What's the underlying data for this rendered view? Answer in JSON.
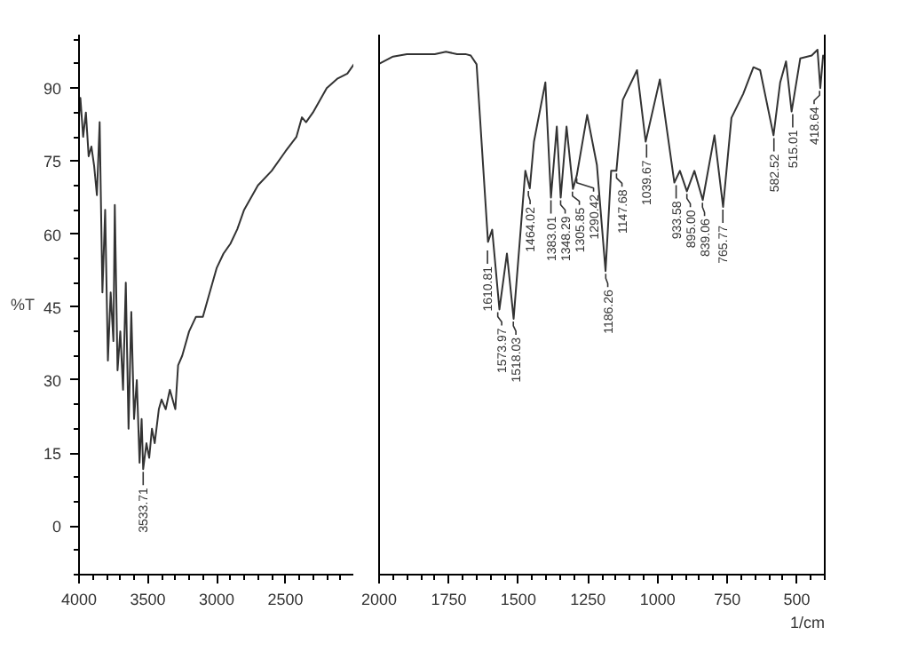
{
  "chart_data": [
    {
      "type": "line",
      "ylabel": "%T",
      "x": [
        4000,
        3990,
        3970,
        3950,
        3930,
        3910,
        3890,
        3870,
        3850,
        3830,
        3810,
        3790,
        3770,
        3750,
        3740,
        3720,
        3700,
        3680,
        3660,
        3640,
        3620,
        3600,
        3580,
        3560,
        3545,
        3533.71,
        3510,
        3490,
        3470,
        3450,
        3420,
        3400,
        3370,
        3340,
        3300,
        3280,
        3250,
        3200,
        3150,
        3100,
        3050,
        3000,
        2950,
        2900,
        2850,
        2800,
        2700,
        2600,
        2500,
        2420,
        2380,
        2350,
        2300,
        2200,
        2120,
        2050,
        2000
      ],
      "values": [
        84,
        88,
        80,
        85,
        76,
        78,
        74,
        68,
        83,
        48,
        65,
        34,
        48,
        38,
        66,
        32,
        40,
        28,
        50,
        20,
        44,
        22,
        30,
        13,
        22,
        11.7,
        17,
        14,
        20,
        17,
        24,
        26,
        24,
        28,
        24,
        33,
        35,
        40,
        43,
        43,
        48,
        53,
        56,
        58,
        61,
        65,
        70,
        73,
        77,
        80,
        84,
        83,
        85,
        90,
        92,
        93,
        95
      ],
      "color": "#333333",
      "line_style": "solid",
      "xlim": [
        4000,
        2000
      ],
      "xticks": [
        4000,
        3500,
        3000,
        2500
      ],
      "ylim": [
        -10,
        101
      ],
      "yticks": [
        0,
        15,
        30,
        45,
        60,
        75,
        90
      ],
      "annotations": [
        {
          "text": "3533.71",
          "x": 3533.71,
          "y": 11.7
        }
      ]
    },
    {
      "type": "line",
      "xlabel": "1/cm",
      "tick_labels": "x",
      "x": [
        2000,
        1950,
        1900,
        1850,
        1800,
        1760,
        1720,
        1690,
        1671,
        1650,
        1609,
        1594,
        1568,
        1541,
        1517,
        1475,
        1459,
        1444,
        1403,
        1383,
        1362,
        1348,
        1327,
        1304,
        1290.42,
        1253,
        1218,
        1187,
        1167,
        1148,
        1125,
        1074,
        1043,
        992,
        940,
        920,
        895,
        868,
        838,
        796,
        765,
        735,
        693,
        656,
        632,
        584,
        560,
        539,
        519,
        488,
        447,
        426,
        416,
        406,
        400
      ],
      "values": [
        95,
        96.5,
        97,
        97,
        97,
        97.5,
        97,
        97,
        96.7,
        94.9,
        58.4,
        60.9,
        44.5,
        56,
        42.6,
        73,
        69.4,
        79,
        91.2,
        67.5,
        82.1,
        67.5,
        82.1,
        69.3,
        72,
        84.5,
        74.2,
        52.4,
        73,
        73,
        87.6,
        93.7,
        79,
        91.8,
        70.6,
        73,
        68.8,
        73,
        67,
        80.3,
        65.6,
        83.9,
        88.8,
        94.3,
        93.7,
        80.3,
        91.2,
        95.5,
        85.2,
        96.1,
        96.7,
        97.9,
        90,
        96.7,
        96
      ],
      "color": "#333333",
      "line_style": "solid",
      "xlim": [
        2000,
        400
      ],
      "xticks": [
        2000,
        1750,
        1500,
        1250,
        1000,
        750,
        500
      ],
      "ylim": [
        -10,
        101
      ],
      "annotations": [
        {
          "text": "1610.81",
          "x": 1610.81,
          "y": 57.2
        },
        {
          "text": "1573.97",
          "x": 1573.97,
          "y": 44.5
        },
        {
          "text": "1518.03",
          "x": 1518.03,
          "y": 42.6
        },
        {
          "text": "1464.02",
          "x": 1464.02,
          "y": 69.4
        },
        {
          "text": "1383.01",
          "x": 1383.01,
          "y": 67.5
        },
        {
          "text": "1348.29",
          "x": 1348.29,
          "y": 67.5
        },
        {
          "text": "1305.85",
          "x": 1305.85,
          "y": 69.3
        },
        {
          "text": "1290.42",
          "x": 1290.42,
          "y": 72
        },
        {
          "text": "1186.26",
          "x": 1186.26,
          "y": 52.4
        },
        {
          "text": "1147.68",
          "x": 1147.68,
          "y": 73
        },
        {
          "text": "1039.67",
          "x": 1039.67,
          "y": 79
        },
        {
          "text": "933.58",
          "x": 933.58,
          "y": 70.6
        },
        {
          "text": "895.00",
          "x": 895.0,
          "y": 68.8
        },
        {
          "text": "839.06",
          "x": 839.06,
          "y": 67
        },
        {
          "text": "765.77",
          "x": 765.77,
          "y": 65.6
        },
        {
          "text": "582.52",
          "x": 582.52,
          "y": 80.3
        },
        {
          "text": "515.01",
          "x": 515.01,
          "y": 85.2
        },
        {
          "text": "418.64",
          "x": 418.64,
          "y": 90
        }
      ]
    }
  ]
}
